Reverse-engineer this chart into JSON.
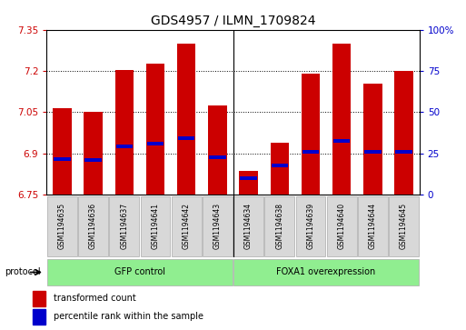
{
  "title": "GDS4957 / ILMN_1709824",
  "samples": [
    "GSM1194635",
    "GSM1194636",
    "GSM1194637",
    "GSM1194641",
    "GSM1194642",
    "GSM1194643",
    "GSM1194634",
    "GSM1194638",
    "GSM1194639",
    "GSM1194640",
    "GSM1194644",
    "GSM1194645"
  ],
  "groups": [
    "GFP control",
    "GFP control",
    "GFP control",
    "GFP control",
    "GFP control",
    "GFP control",
    "FOXA1 overexpression",
    "FOXA1 overexpression",
    "FOXA1 overexpression",
    "FOXA1 overexpression",
    "FOXA1 overexpression",
    "FOXA1 overexpression"
  ],
  "bar_values": [
    7.065,
    7.05,
    7.205,
    7.225,
    7.3,
    7.075,
    6.835,
    6.94,
    7.19,
    7.3,
    7.155,
    7.2
  ],
  "percentile_values": [
    6.88,
    6.875,
    6.925,
    6.935,
    6.955,
    6.885,
    6.81,
    6.855,
    6.905,
    6.945,
    6.905,
    6.905
  ],
  "bar_bottom": 6.75,
  "ylim": [
    6.75,
    7.35
  ],
  "yticks": [
    6.75,
    6.9,
    7.05,
    7.2,
    7.35
  ],
  "ytick_labels": [
    "6.75",
    "6.9",
    "7.05",
    "7.2",
    "7.35"
  ],
  "right_yticks": [
    0,
    25,
    50,
    75,
    100
  ],
  "right_ytick_labels": [
    "0",
    "25",
    "50",
    "75",
    "100%"
  ],
  "bar_color": "#cc0000",
  "percentile_color": "#0000cc",
  "bar_width": 0.6,
  "sample_box_color": "#d8d8d8",
  "group_box_color": "#90ee90",
  "title_fontsize": 10,
  "tick_fontsize": 7.5,
  "sample_fontsize": 5.5,
  "group_fontsize": 7,
  "legend_fontsize": 7,
  "legend_red_label": "transformed count",
  "legend_blue_label": "percentile rank within the sample",
  "protocol_label": "protocol",
  "bg_color": "#ffffff"
}
